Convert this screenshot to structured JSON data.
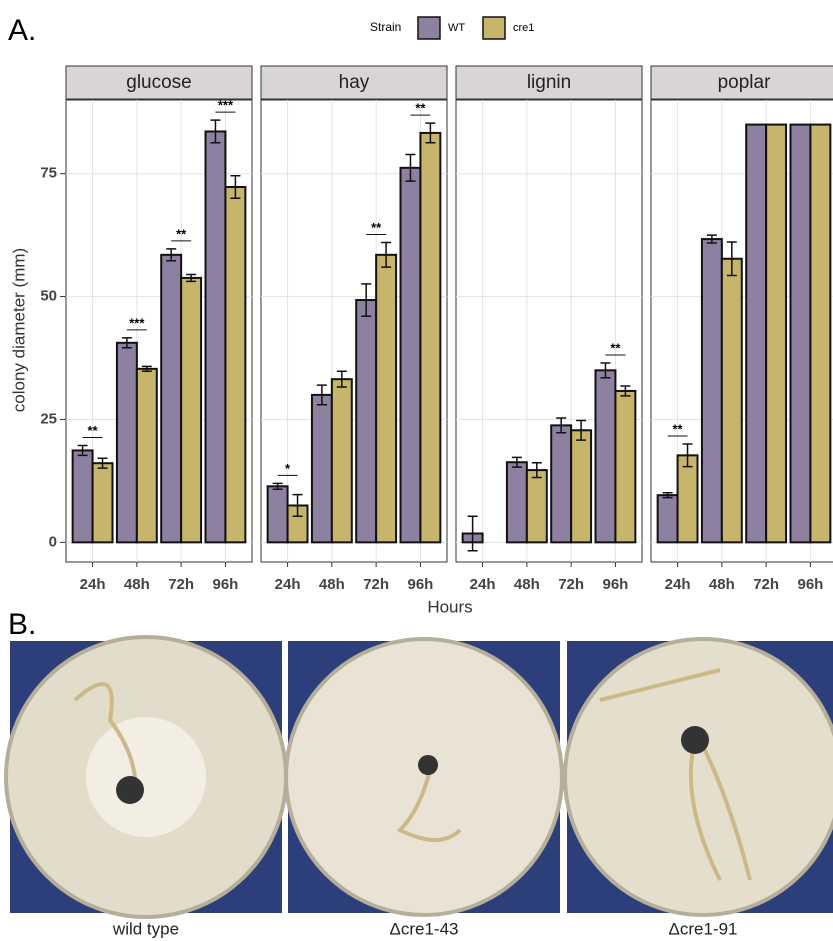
{
  "chart_data": {
    "type": "bar",
    "panel_label": "A.",
    "legend_title": "Strain",
    "series": [
      {
        "name": "WT",
        "color": "#8e80a0"
      },
      {
        "name": "cre1",
        "color": "#c7b56b"
      }
    ],
    "categories": [
      "24h",
      "48h",
      "72h",
      "96h"
    ],
    "x_label": "Hours",
    "y_label": "colony diameter (mm)",
    "ylim": [
      -4,
      90
    ],
    "yticks": [
      0,
      25,
      50,
      75
    ],
    "grid": true,
    "facets": [
      {
        "title": "glucose",
        "values": [
          [
            18.7,
            40.6,
            58.5,
            83.6
          ],
          [
            16.1,
            35.3,
            53.8,
            72.3
          ]
        ],
        "errors": [
          [
            1,
            1,
            1.2,
            2.3
          ],
          [
            1,
            0.5,
            0.7,
            2.3
          ]
        ],
        "annotations": [
          "**",
          "***",
          "**",
          "***"
        ]
      },
      {
        "title": "hay",
        "values": [
          [
            11.4,
            30,
            49.3,
            76.2
          ],
          [
            7.5,
            33.2,
            58.5,
            83.3
          ]
        ],
        "errors": [
          [
            0.6,
            2,
            3.3,
            2.7
          ],
          [
            2.2,
            1.6,
            2.5,
            2
          ]
        ],
        "annotations": [
          "*",
          null,
          "**",
          "**"
        ]
      },
      {
        "title": "lignin",
        "values": [
          [
            1.8,
            16.3,
            23.8,
            35
          ],
          [
            0,
            14.7,
            22.8,
            30.8
          ]
        ],
        "errors": [
          [
            3.5,
            1,
            1.5,
            1.5
          ],
          [
            0,
            1.5,
            2,
            1
          ]
        ],
        "annotations": [
          null,
          null,
          null,
          "**"
        ]
      },
      {
        "title": "poplar",
        "values": [
          [
            9.6,
            61.7,
            85,
            85
          ],
          [
            17.7,
            57.7,
            85,
            85
          ]
        ],
        "errors": [
          [
            0.5,
            0.8,
            0,
            0
          ],
          [
            2.3,
            3.4,
            0,
            0
          ]
        ],
        "annotations": [
          "**",
          null,
          null,
          null
        ]
      }
    ]
  },
  "panel_b": {
    "label": "B.",
    "captions": [
      "wild type",
      "Δcre1-43",
      "Δcre1-91"
    ]
  }
}
